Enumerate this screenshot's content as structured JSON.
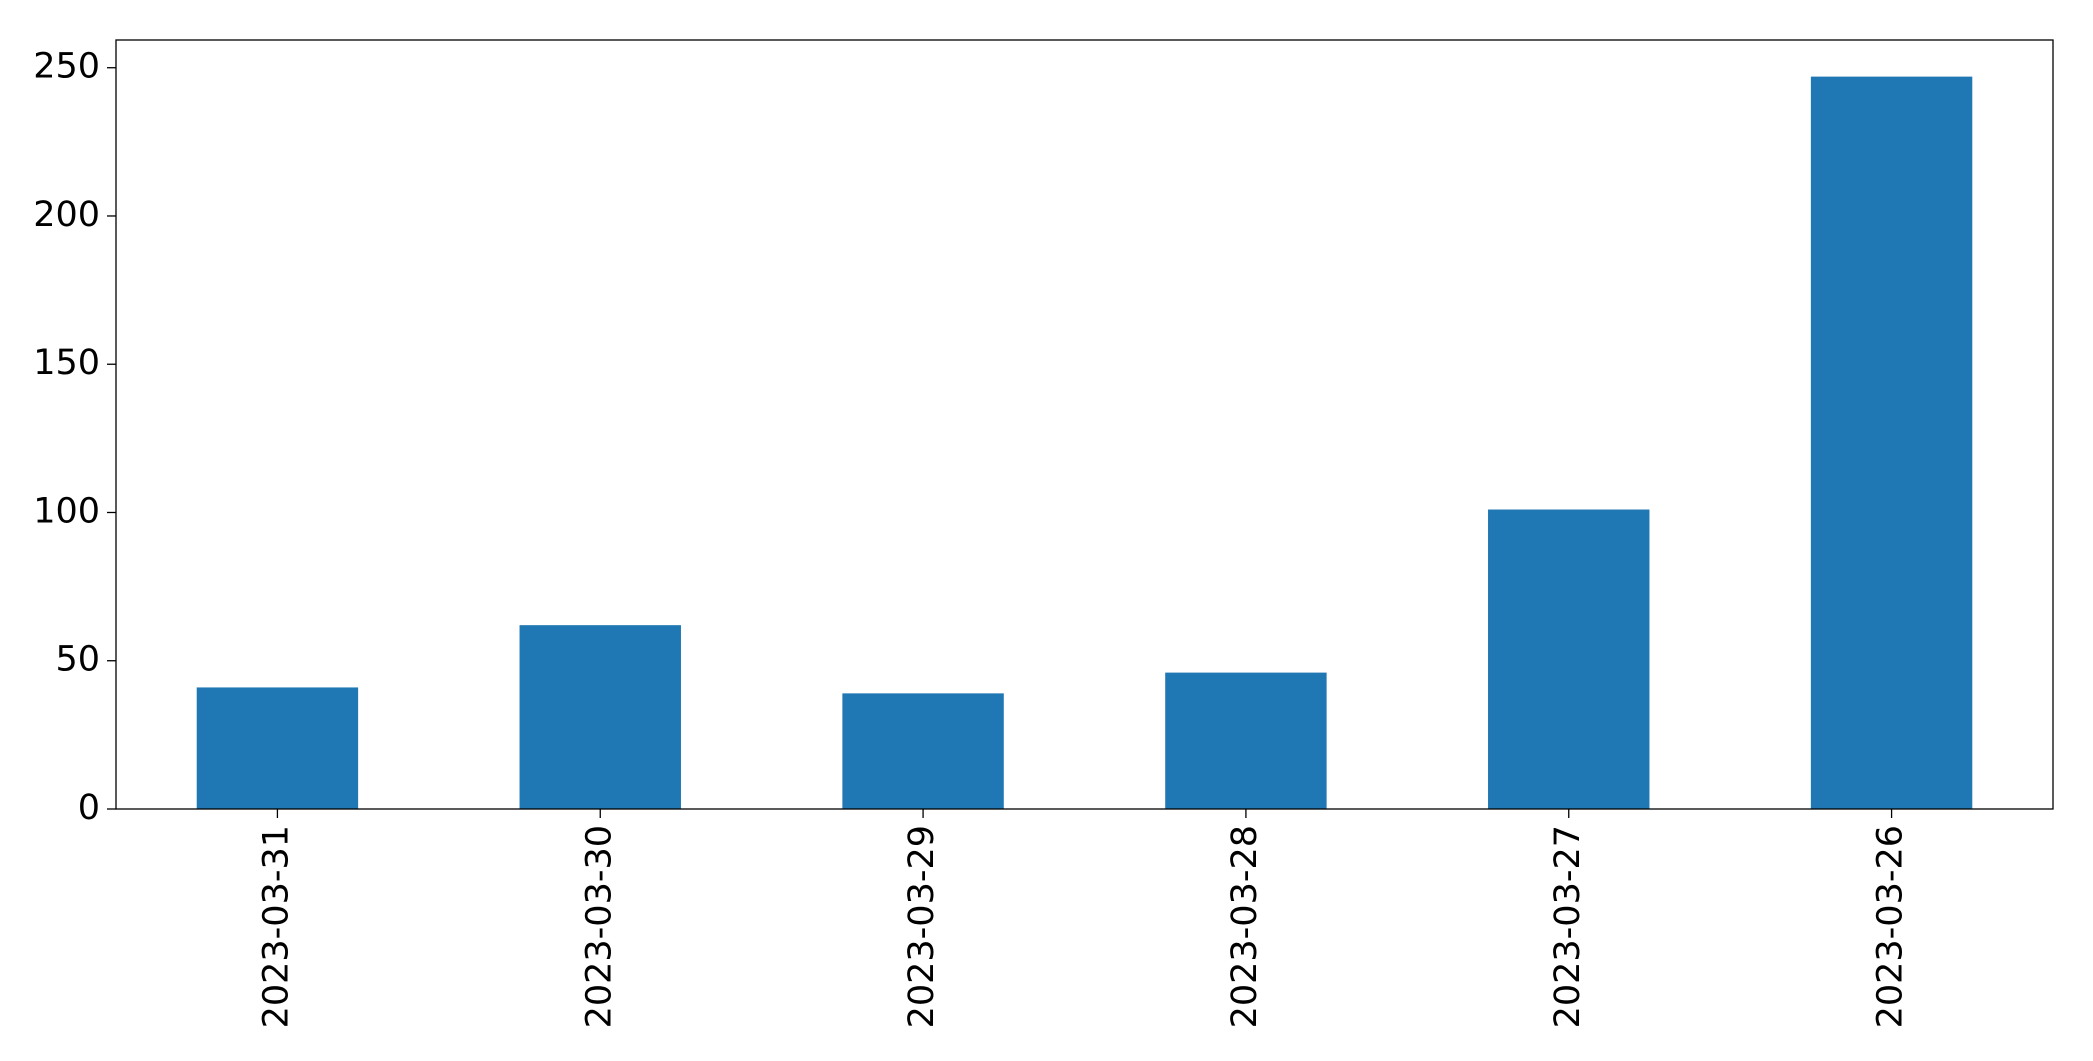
{
  "chart_data": {
    "type": "bar",
    "categories": [
      "2023-03-31",
      "2023-03-30",
      "2023-03-29",
      "2023-03-28",
      "2023-03-27",
      "2023-03-26"
    ],
    "values": [
      41,
      62,
      39,
      46,
      101,
      247
    ],
    "color": "#1f77b4",
    "ylim": [
      0,
      259.35
    ],
    "yticks": [
      0,
      50,
      100,
      150,
      200,
      250
    ]
  }
}
